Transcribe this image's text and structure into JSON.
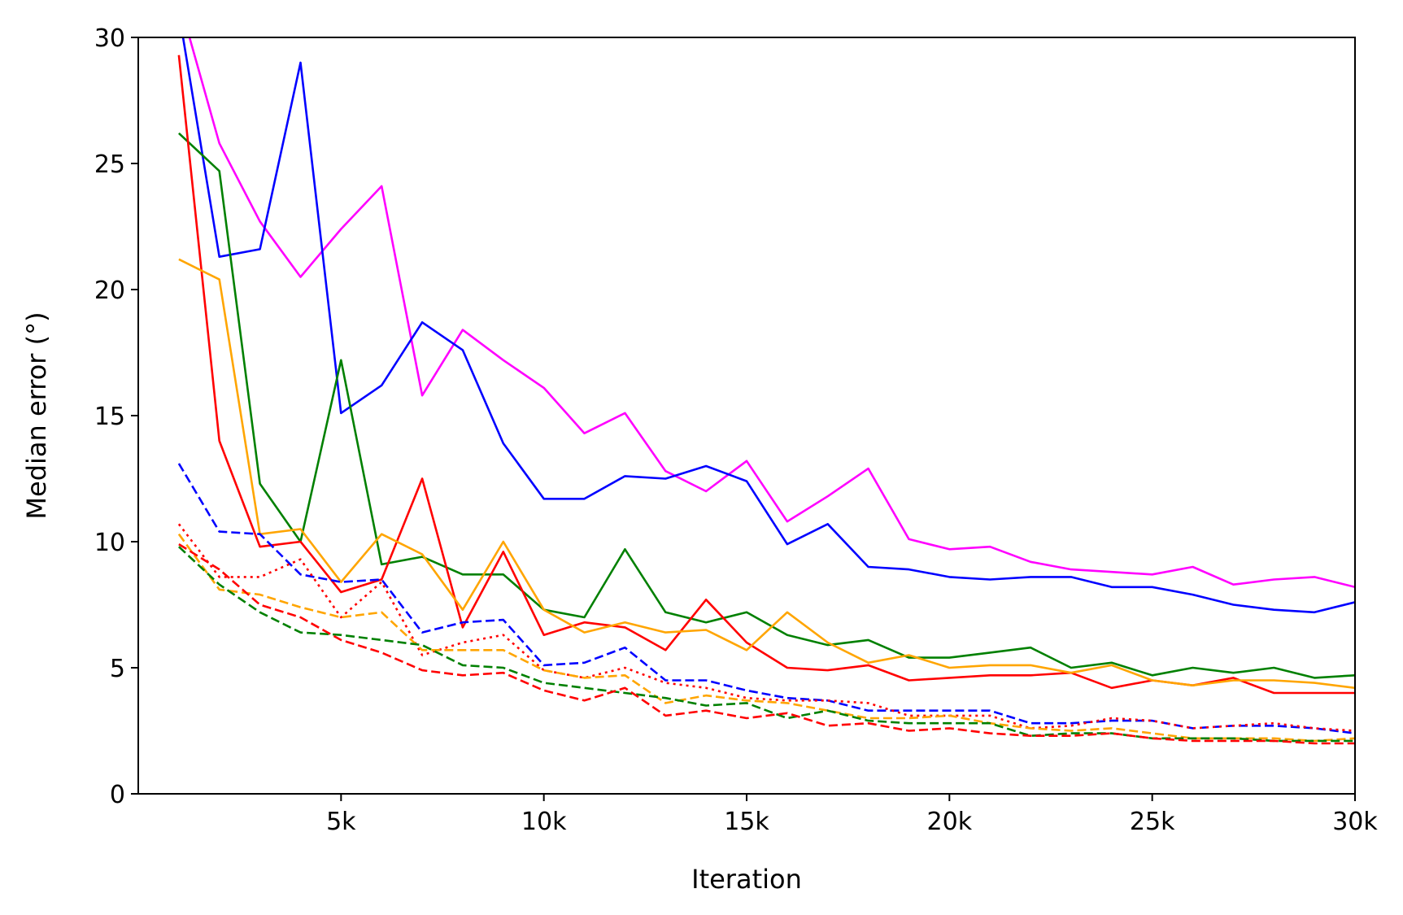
{
  "chart_data": {
    "type": "line",
    "title": "",
    "xlabel": "Iteration",
    "ylabel": "Median error (°)",
    "xlim": [
      0,
      30000
    ],
    "ylim": [
      0,
      30
    ],
    "xticks": [
      5000,
      10000,
      15000,
      20000,
      25000,
      30000
    ],
    "xtick_labels": [
      "5k",
      "10k",
      "15k",
      "20k",
      "25k",
      "30k"
    ],
    "yticks": [
      0,
      5,
      10,
      15,
      20,
      25,
      30
    ],
    "ytick_labels": [
      "0",
      "5",
      "10",
      "15",
      "20",
      "25",
      "30"
    ],
    "grid": false,
    "legend": "none",
    "x": [
      1000,
      2000,
      3000,
      4000,
      5000,
      6000,
      7000,
      8000,
      9000,
      10000,
      11000,
      12000,
      13000,
      14000,
      15000,
      16000,
      17000,
      18000,
      19000,
      20000,
      21000,
      22000,
      23000,
      24000,
      25000,
      26000,
      27000,
      28000,
      29000,
      30000
    ],
    "series": [
      {
        "color": "#ff00ff",
        "style": "solid",
        "values": [
          31.5,
          25.8,
          22.7,
          20.5,
          22.4,
          24.1,
          15.8,
          18.4,
          17.2,
          16.1,
          14.3,
          15.1,
          12.8,
          12.0,
          13.2,
          10.8,
          11.8,
          12.9,
          10.1,
          9.7,
          9.8,
          9.2,
          8.9,
          8.8,
          8.7,
          9.0,
          8.3,
          8.5,
          8.6,
          8.2
        ]
      },
      {
        "color": "#0000ff",
        "style": "solid",
        "values": [
          31.0,
          21.3,
          21.6,
          29.0,
          15.1,
          16.2,
          18.7,
          17.6,
          13.9,
          11.7,
          11.7,
          12.6,
          12.5,
          13.0,
          12.4,
          9.9,
          10.7,
          9.0,
          8.9,
          8.6,
          8.5,
          8.6,
          8.6,
          8.2,
          8.2,
          7.9,
          7.5,
          7.3,
          7.2,
          7.6
        ]
      },
      {
        "color": "#008000",
        "style": "solid",
        "values": [
          26.2,
          24.7,
          12.3,
          10.0,
          17.2,
          9.1,
          9.4,
          8.7,
          8.7,
          7.3,
          7.0,
          9.7,
          7.2,
          6.8,
          7.2,
          6.3,
          5.9,
          6.1,
          5.4,
          5.4,
          5.6,
          5.8,
          5.0,
          5.2,
          4.7,
          5.0,
          4.8,
          5.0,
          4.6,
          4.7
        ]
      },
      {
        "color": "#ff0000",
        "style": "solid",
        "values": [
          29.3,
          14.0,
          9.8,
          10.0,
          8.0,
          8.5,
          12.5,
          6.6,
          9.6,
          6.3,
          6.8,
          6.6,
          5.7,
          7.7,
          6.0,
          5.0,
          4.9,
          5.1,
          4.5,
          4.6,
          4.7,
          4.7,
          4.8,
          4.2,
          4.5,
          4.3,
          4.6,
          4.0,
          4.0,
          4.0
        ]
      },
      {
        "color": "#ffa500",
        "style": "solid",
        "values": [
          21.2,
          20.4,
          10.3,
          10.5,
          8.4,
          10.3,
          9.5,
          7.3,
          10.0,
          7.3,
          6.4,
          6.8,
          6.4,
          6.5,
          5.7,
          7.2,
          6.0,
          5.2,
          5.5,
          5.0,
          5.1,
          5.1,
          4.8,
          5.1,
          4.5,
          4.3,
          4.5,
          4.5,
          4.4,
          4.2
        ]
      },
      {
        "color": "#0000ff",
        "style": "dashed",
        "values": [
          13.1,
          10.4,
          10.3,
          8.7,
          8.4,
          8.5,
          6.4,
          6.8,
          6.9,
          5.1,
          5.2,
          5.8,
          4.5,
          4.5,
          4.1,
          3.8,
          3.7,
          3.3,
          3.3,
          3.3,
          3.3,
          2.8,
          2.8,
          2.9,
          2.9,
          2.6,
          2.7,
          2.7,
          2.6,
          2.4
        ]
      },
      {
        "color": "#ff0000",
        "style": "dotted",
        "values": [
          10.7,
          8.6,
          8.6,
          9.3,
          7.0,
          8.4,
          5.5,
          6.0,
          6.3,
          4.9,
          4.6,
          5.0,
          4.4,
          4.2,
          3.8,
          3.7,
          3.7,
          3.6,
          3.1,
          3.1,
          3.1,
          2.6,
          2.7,
          3.0,
          2.9,
          2.6,
          2.7,
          2.8,
          2.6,
          2.5
        ]
      },
      {
        "color": "#ffa500",
        "style": "dashed",
        "values": [
          10.3,
          8.1,
          7.9,
          7.4,
          7.0,
          7.2,
          5.7,
          5.7,
          5.7,
          4.9,
          4.6,
          4.7,
          3.6,
          3.9,
          3.7,
          3.6,
          3.3,
          3.0,
          3.0,
          3.1,
          2.8,
          2.6,
          2.5,
          2.6,
          2.4,
          2.2,
          2.2,
          2.2,
          2.1,
          2.2
        ]
      },
      {
        "color": "#008000",
        "style": "dashed",
        "values": [
          9.8,
          8.3,
          7.2,
          6.4,
          6.3,
          6.1,
          5.9,
          5.1,
          5.0,
          4.4,
          4.2,
          4.0,
          3.8,
          3.5,
          3.6,
          3.0,
          3.3,
          2.9,
          2.8,
          2.8,
          2.8,
          2.3,
          2.4,
          2.4,
          2.2,
          2.2,
          2.2,
          2.1,
          2.1,
          2.1
        ]
      },
      {
        "color": "#ff0000",
        "style": "dashed",
        "values": [
          9.9,
          8.9,
          7.5,
          7.0,
          6.1,
          5.6,
          4.9,
          4.7,
          4.8,
          4.1,
          3.7,
          4.2,
          3.1,
          3.3,
          3.0,
          3.2,
          2.7,
          2.8,
          2.5,
          2.6,
          2.4,
          2.3,
          2.3,
          2.4,
          2.2,
          2.1,
          2.1,
          2.1,
          2.0,
          2.0
        ]
      }
    ]
  }
}
